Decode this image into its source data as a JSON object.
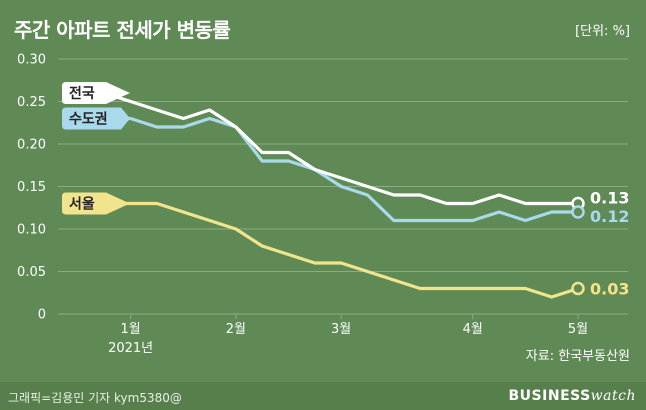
{
  "header": {
    "title": "주간 아파트 전세가 변동률",
    "unit": "[단위: %]"
  },
  "footer": {
    "source": "자료: 한국부동산원",
    "credit": "그래픽=김용민 기자 kym5380@",
    "brand_bold": "BUSINESS",
    "brand_light": "watch"
  },
  "colors": {
    "background": "#5f8a55",
    "national": "#ffffff",
    "capital": "#a9d9ea",
    "seoul": "#f1e48c",
    "grid": "#8cab82"
  },
  "chart_data": {
    "type": "line",
    "x": [
      1,
      2,
      3,
      4,
      5,
      6,
      7,
      8,
      9,
      10,
      11,
      12,
      13,
      14,
      15,
      16,
      17,
      18,
      19,
      20
    ],
    "x_ticks": [
      {
        "x": 3,
        "label": "1월",
        "sublabel": "2021년"
      },
      {
        "x": 7,
        "label": "2월",
        "sublabel": ""
      },
      {
        "x": 11,
        "label": "3월",
        "sublabel": ""
      },
      {
        "x": 16,
        "label": "4월",
        "sublabel": ""
      },
      {
        "x": 20,
        "label": "5월",
        "sublabel": ""
      }
    ],
    "ylim": [
      0,
      0.3
    ],
    "yticks": [
      "0",
      "0.05",
      "0.10",
      "0.15",
      "0.20",
      "0.25",
      "0.30"
    ],
    "grid": true,
    "series": [
      {
        "name": "전국",
        "color_key": "national",
        "end_label": "0.13",
        "values": [
          0.26,
          0.26,
          0.25,
          0.24,
          0.23,
          0.24,
          0.22,
          0.19,
          0.19,
          0.17,
          0.16,
          0.15,
          0.14,
          0.14,
          0.13,
          0.13,
          0.14,
          0.13,
          0.13,
          0.13
        ]
      },
      {
        "name": "수도권",
        "color_key": "capital",
        "end_label": "0.12",
        "values": [
          0.23,
          0.23,
          0.23,
          0.22,
          0.22,
          0.23,
          0.22,
          0.18,
          0.18,
          0.17,
          0.15,
          0.14,
          0.11,
          0.11,
          0.11,
          0.11,
          0.12,
          0.11,
          0.12,
          0.12
        ]
      },
      {
        "name": "서울",
        "color_key": "seoul",
        "end_label": "0.03",
        "values": [
          0.13,
          0.13,
          0.13,
          0.13,
          0.12,
          0.11,
          0.1,
          0.08,
          0.07,
          0.06,
          0.06,
          0.05,
          0.04,
          0.03,
          0.03,
          0.03,
          0.03,
          0.03,
          0.02,
          0.03
        ]
      }
    ]
  }
}
